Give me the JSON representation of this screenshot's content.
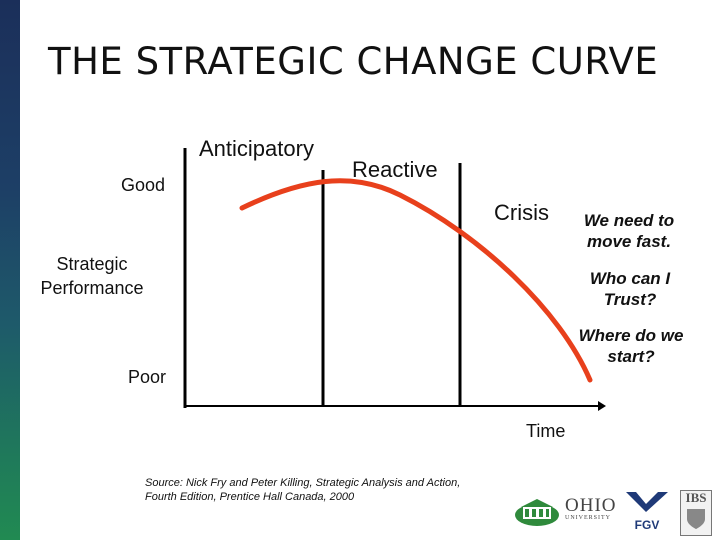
{
  "slide": {
    "title": "THE STRATEGIC CHANGE CURVE",
    "phases": {
      "anticipatory": "Anticipatory",
      "reactive": "Reactive",
      "crisis": "Crisis"
    },
    "y_axis": {
      "label_line1": "Strategic",
      "label_line2": "Performance",
      "top": "Good",
      "bottom": "Poor"
    },
    "x_axis": {
      "label": "Time"
    },
    "crisis_notes": [
      {
        "line1": "We need to",
        "line2": "move fast."
      },
      {
        "line1": "Who can I",
        "line2": "Trust?"
      },
      {
        "line1": "Where do we",
        "line2": "start?"
      }
    ],
    "source_line1": "Source:  Nick Fry and Peter Killing, Strategic Analysis and Action,",
    "source_line2": "Fourth Edition, Prentice Hall Canada, 2000",
    "logos": {
      "ohio_main": "OHIO",
      "ohio_sub": "UNIVERSITY",
      "fgv": "FGV",
      "ibs": "IBS"
    },
    "colors": {
      "curve": "#e8401c",
      "sidebar_top": "#1b2f5a",
      "sidebar_bottom": "#218a52",
      "axes": "#000000"
    }
  }
}
